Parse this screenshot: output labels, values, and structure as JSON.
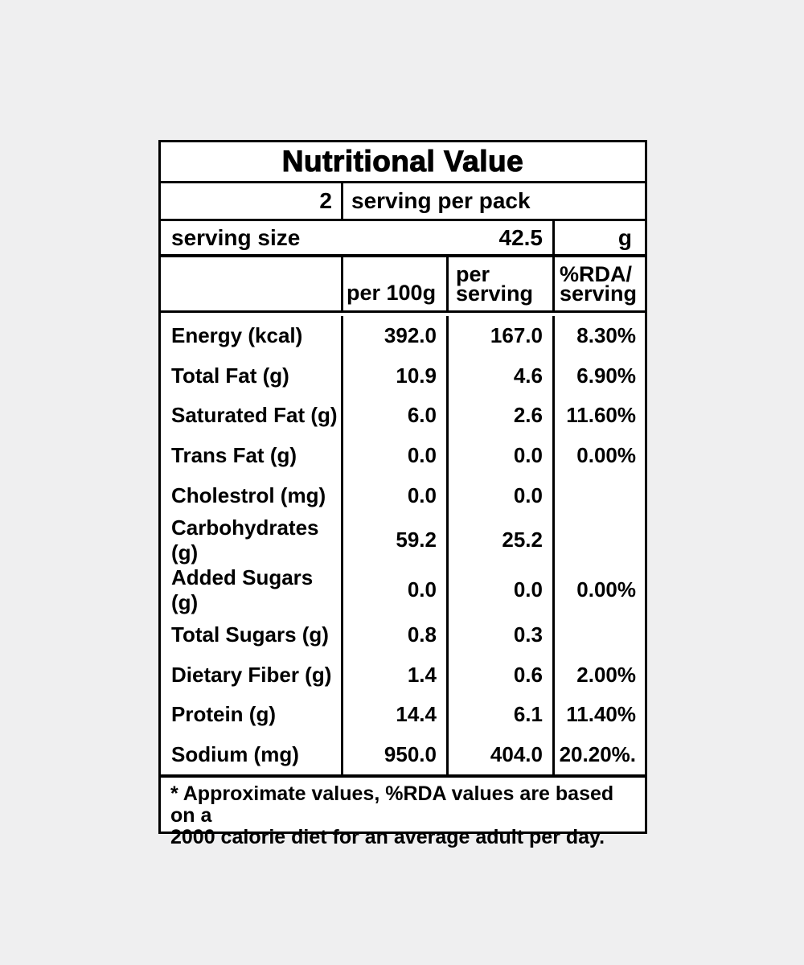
{
  "page": {
    "background_color": "#efeff0",
    "panel_color": "#ffffff",
    "border_color": "#000000"
  },
  "label": {
    "title": "Nutritional Value",
    "pack": {
      "count": "2",
      "text": "serving per pack"
    },
    "serving_size": {
      "label": "serving size",
      "value": "42.5",
      "unit": "g"
    },
    "columns": {
      "per_100g": "per 100g",
      "per_serving_line1": "per",
      "per_serving_line2": "serving",
      "rda_line1": "%RDA/",
      "rda_line2": "serving"
    },
    "rows": [
      {
        "nutrient": "Energy (kcal)",
        "per_100g": "392.0",
        "per_serving": "167.0",
        "rda": "8.30%"
      },
      {
        "nutrient": "Total Fat (g)",
        "per_100g": "10.9",
        "per_serving": "4.6",
        "rda": "6.90%"
      },
      {
        "nutrient": "Saturated Fat (g)",
        "per_100g": "6.0",
        "per_serving": "2.6",
        "rda": "11.60%"
      },
      {
        "nutrient": "Trans Fat (g)",
        "per_100g": "0.0",
        "per_serving": "0.0",
        "rda": "0.00%"
      },
      {
        "nutrient": "Cholestrol (mg)",
        "per_100g": "0.0",
        "per_serving": "0.0",
        "rda": ""
      },
      {
        "nutrient": "Carbohydrates (g)",
        "per_100g": "59.2",
        "per_serving": "25.2",
        "rda": ""
      },
      {
        "nutrient": "Added Sugars (g)",
        "per_100g": "0.0",
        "per_serving": "0.0",
        "rda": "0.00%"
      },
      {
        "nutrient": "Total Sugars (g)",
        "per_100g": "0.8",
        "per_serving": "0.3",
        "rda": ""
      },
      {
        "nutrient": "Dietary Fiber (g)",
        "per_100g": "1.4",
        "per_serving": "0.6",
        "rda": "2.00%"
      },
      {
        "nutrient": "Protein (g)",
        "per_100g": "14.4",
        "per_serving": "6.1",
        "rda": "11.40%"
      },
      {
        "nutrient": "Sodium (mg)",
        "per_100g": "950.0",
        "per_serving": "404.0",
        "rda": "20.20%."
      }
    ],
    "footnote_line1": "* Approximate values, %RDA values are based on a",
    "footnote_line2": "2000 calorie diet for an average adult per day."
  }
}
